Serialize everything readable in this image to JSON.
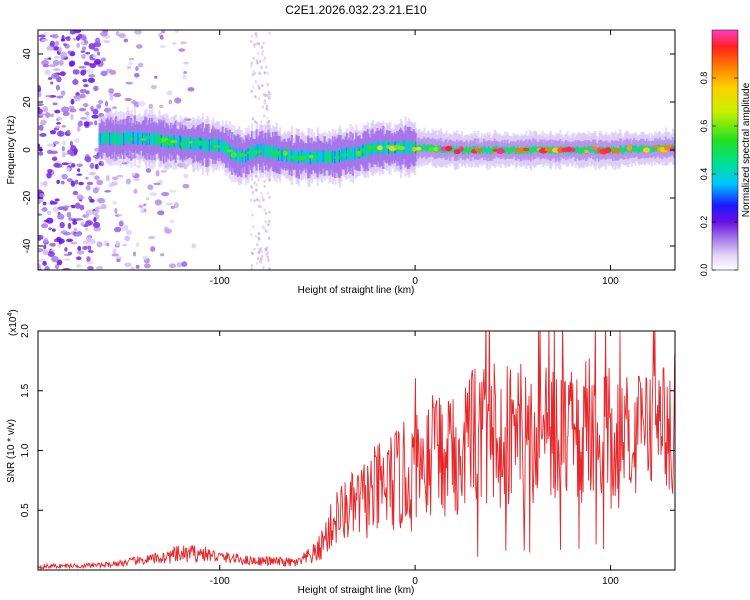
{
  "figure": {
    "title": "C2E1.2026.032.23.21.E10"
  },
  "colors": {
    "snr_line": "#e8262a",
    "axis": "#000000",
    "background": "#ffffff"
  },
  "chart_data": [
    {
      "type": "heatmap",
      "name": "spectrogram",
      "title": "C2E1.2026.032.23.21.E10",
      "xlabel": "Height of straight line (km)",
      "ylabel": "Frequency (Hz)",
      "xlim": [
        -193,
        133
      ],
      "ylim": [
        -50,
        50
      ],
      "xticks": [
        -100,
        0,
        100
      ],
      "yticks": [
        -40,
        -20,
        0,
        20,
        40
      ],
      "grid": false,
      "colorbar": {
        "label": "Normalized spectral amplitude",
        "range": [
          0,
          1
        ],
        "ticks": [
          0.0,
          0.2,
          0.4,
          0.6,
          0.8
        ],
        "tick_labels": [
          "0.0",
          "0.2",
          "0.4",
          "0.6",
          "0.8"
        ],
        "colormap": [
          "#ffffff",
          "#d9c7f5",
          "#b27ce8",
          "#7a1ee0",
          "#1a1aff",
          "#00c8ff",
          "#00e08a",
          "#2ee82e",
          "#c8f000",
          "#ffd000",
          "#ff7a00",
          "#ff2020",
          "#ff3cc8"
        ]
      },
      "ridge": {
        "description": "main spectral band center frequency vs height",
        "x": [
          -160,
          -140,
          -120,
          -100,
          -90,
          -80,
          -60,
          -45,
          -30,
          -20,
          -10,
          0,
          20,
          50,
          80,
          100,
          133
        ],
        "y": [
          5,
          5,
          3,
          2,
          -3,
          0,
          -3,
          -3,
          -1,
          1,
          1,
          1,
          0,
          0,
          0,
          0,
          1
        ]
      }
    },
    {
      "type": "line",
      "name": "snr",
      "xlabel": "Height of straight line (km)",
      "ylabel": "SNR (10 * v/v)",
      "multiplier_label": "(x10",
      "multiplier_exp": "4",
      "xlim": [
        -193,
        133
      ],
      "ylim": [
        0,
        2.0
      ],
      "xticks": [
        -100,
        0,
        100
      ],
      "yticks": [
        0.5,
        1.0,
        1.5,
        2.0
      ],
      "ytick_labels": [
        "0.5",
        "1.0",
        "1.5",
        "2.0"
      ],
      "grid": false,
      "series": [
        {
          "name": "SNR",
          "envelope_x": [
            -193,
            -160,
            -150,
            -130,
            -120,
            -110,
            -100,
            -85,
            -70,
            -60,
            -50,
            -45,
            -40,
            -30,
            -20,
            -10,
            0,
            10,
            20,
            30,
            40,
            50,
            60,
            70,
            80,
            90,
            100,
            110,
            120,
            125,
            130,
            133
          ],
          "envelope_mean": [
            0.03,
            0.04,
            0.06,
            0.1,
            0.13,
            0.14,
            0.11,
            0.08,
            0.07,
            0.06,
            0.15,
            0.3,
            0.45,
            0.55,
            0.65,
            0.75,
            0.8,
            0.95,
            1.05,
            1.15,
            1.15,
            1.15,
            1.1,
            1.15,
            1.1,
            1.2,
            1.1,
            1.05,
            1.2,
            1.4,
            1.1,
            1.0
          ],
          "envelope_spread": [
            0.02,
            0.02,
            0.03,
            0.05,
            0.08,
            0.07,
            0.05,
            0.04,
            0.04,
            0.04,
            0.1,
            0.18,
            0.25,
            0.3,
            0.4,
            0.45,
            0.5,
            0.55,
            0.6,
            0.65,
            0.65,
            0.6,
            0.6,
            0.6,
            0.6,
            0.6,
            0.6,
            0.55,
            0.5,
            0.45,
            0.5,
            0.5
          ]
        }
      ]
    }
  ]
}
